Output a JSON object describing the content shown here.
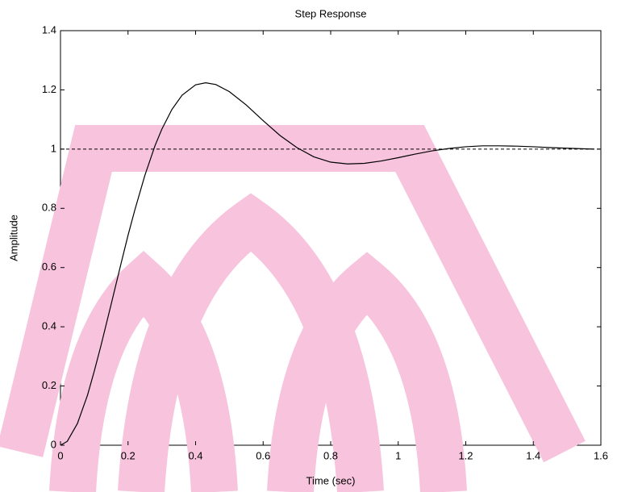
{
  "chart_data": {
    "type": "line",
    "title": "Step Response",
    "x_label": "Time (sec)",
    "y_label": "Amplitude",
    "x": [
      0,
      0.02,
      0.05,
      0.08,
      0.1,
      0.12,
      0.15,
      0.18,
      0.2,
      0.22,
      0.25,
      0.28,
      0.3,
      0.33,
      0.36,
      0.4,
      0.43,
      0.46,
      0.5,
      0.55,
      0.6,
      0.65,
      0.7,
      0.75,
      0.8,
      0.85,
      0.9,
      0.95,
      1.0,
      1.05,
      1.1,
      1.15,
      1.2,
      1.25,
      1.3,
      1.35,
      1.4,
      1.45,
      1.5,
      1.55,
      1.58
    ],
    "series": [
      {
        "color": "#000000",
        "values": [
          0,
          0.013,
          0.073,
          0.169,
          0.25,
          0.337,
          0.476,
          0.617,
          0.709,
          0.794,
          0.912,
          1.012,
          1.067,
          1.134,
          1.182,
          1.217,
          1.224,
          1.218,
          1.194,
          1.149,
          1.096,
          1.046,
          1.005,
          0.974,
          0.956,
          0.95,
          0.952,
          0.96,
          0.971,
          0.983,
          0.994,
          1.002,
          1.008,
          1.011,
          1.011,
          1.01,
          1.008,
          1.005,
          1.003,
          1.001,
          1.0
        ]
      }
    ],
    "reference_line": 1,
    "xlim": [
      0,
      1.6
    ],
    "ylim": [
      0,
      1.4
    ],
    "xticks": [
      0,
      0.2,
      0.4,
      0.6,
      0.8,
      1,
      1.2,
      1.4,
      1.6
    ],
    "yticks": [
      0,
      0.2,
      0.4,
      0.6,
      0.8,
      1,
      1.2,
      1.4
    ],
    "grid": false
  }
}
